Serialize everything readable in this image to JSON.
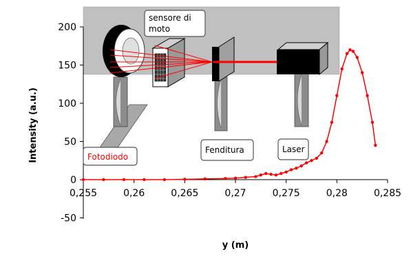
{
  "chart_data": {
    "type": "scatter",
    "title": "",
    "xlabel": "y (m)",
    "ylabel": "Intensity (a.u.)",
    "xlim": [
      0.255,
      0.285
    ],
    "ylim": [
      -50,
      200
    ],
    "x_ticks": [
      0.255,
      0.26,
      0.265,
      0.27,
      0.275,
      0.28,
      0.285
    ],
    "x_tick_labels": [
      "0,255",
      "0,26",
      "0,265",
      "0,27",
      "0,275",
      "0,28",
      "0,285"
    ],
    "y_ticks": [
      -50,
      0,
      50,
      100,
      150,
      200
    ],
    "y_tick_labels": [
      "-50",
      "0",
      "50",
      "100",
      "150",
      "200"
    ],
    "grid": false,
    "series": [
      {
        "color": "#ff0000",
        "x": [
          0.255,
          0.257,
          0.259,
          0.261,
          0.263,
          0.265,
          0.267,
          0.269,
          0.27,
          0.271,
          0.272,
          0.2725,
          0.273,
          0.2735,
          0.274,
          0.2745,
          0.275,
          0.2755,
          0.276,
          0.2765,
          0.277,
          0.2775,
          0.278,
          0.2785,
          0.279,
          0.2795,
          0.28,
          0.2805,
          0.281,
          0.2813,
          0.2816,
          0.282,
          0.2825,
          0.283,
          0.2835,
          0.2838
        ],
        "y": [
          0,
          0,
          0,
          0,
          0,
          0.5,
          1,
          1.5,
          2,
          3,
          4,
          6,
          8,
          7,
          6,
          8,
          10,
          13,
          15,
          18,
          22,
          25,
          28,
          35,
          50,
          75,
          110,
          145,
          165,
          170,
          168,
          160,
          140,
          110,
          75,
          45
        ]
      }
    ],
    "inset": {
      "labels": {
        "sensor": "sensore di moto",
        "photodiode": "Fotodiodo",
        "slit": "Fenditura",
        "laser": "Laser"
      },
      "colors": {
        "background": "#c0c0c0",
        "laser_beam": "#ff0000",
        "device": "#000000",
        "stand": "#8c8c8c",
        "photodiode_label": "#ff0000"
      }
    }
  }
}
